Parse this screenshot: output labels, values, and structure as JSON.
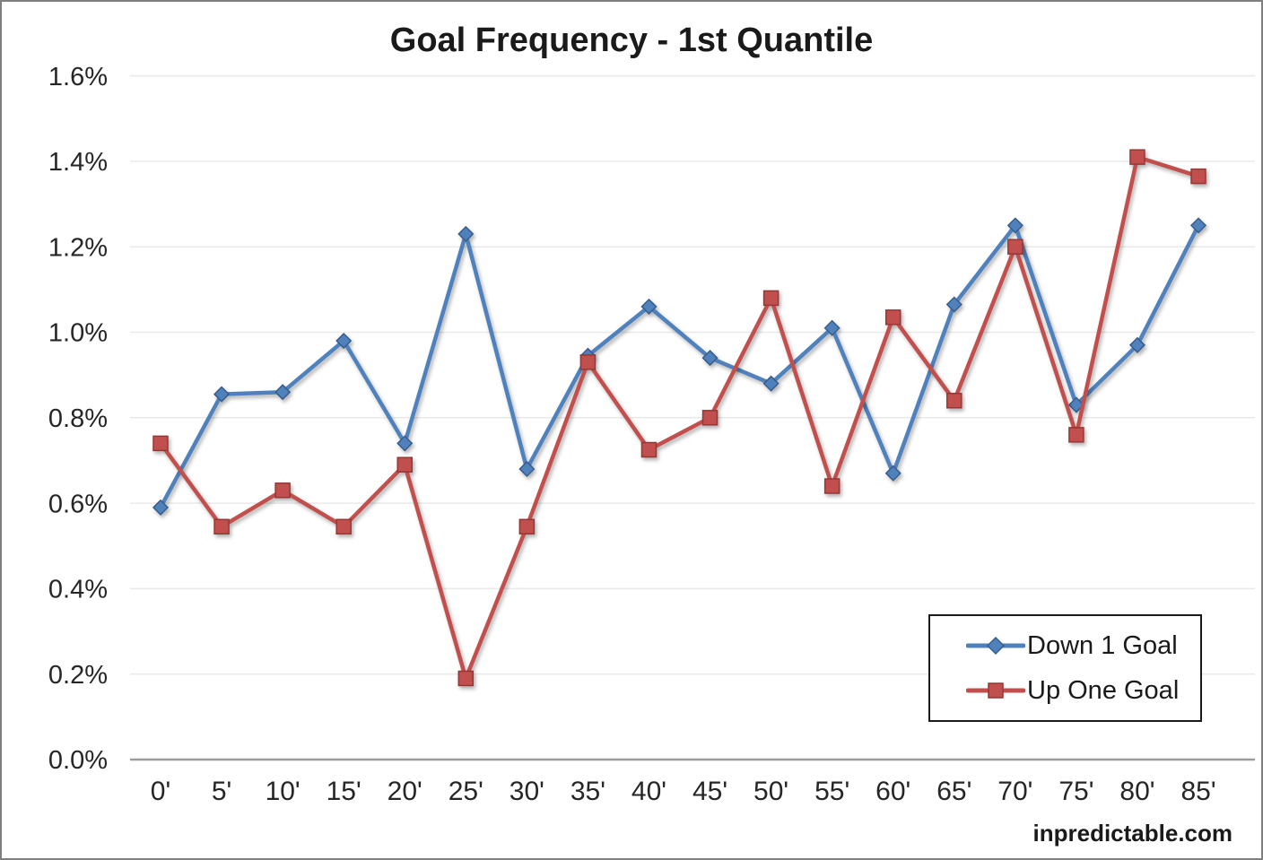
{
  "title": "Goal Frequency - 1st Quantile",
  "watermark": "inpredictable.com",
  "colors": {
    "text": "#262626",
    "gridline": "#e9e9e9",
    "axis_line": "#9c9c9c",
    "down_line": "#4F81BD",
    "down_marker_stroke": "#385D8A",
    "up_line": "#C0504D",
    "up_marker_stroke": "#953735",
    "legend_border": "#1a1a1a"
  },
  "chart_data": {
    "type": "line",
    "title": "Goal Frequency - 1st Quantile",
    "xlabel": "",
    "ylabel": "",
    "units": "percent",
    "categories": [
      "0'",
      "5'",
      "10'",
      "15'",
      "20'",
      "25'",
      "30'",
      "35'",
      "40'",
      "45'",
      "50'",
      "55'",
      "60'",
      "65'",
      "70'",
      "75'",
      "80'",
      "85'"
    ],
    "series": [
      {
        "name": "Down 1 Goal",
        "marker": "diamond",
        "color": "#4F81BD",
        "marker_stroke": "#385D8A",
        "values": [
          0.59,
          0.855,
          0.86,
          0.98,
          0.74,
          1.23,
          0.68,
          0.945,
          1.06,
          0.94,
          0.88,
          1.01,
          0.67,
          1.065,
          1.25,
          0.83,
          0.97,
          1.25
        ]
      },
      {
        "name": "Up One Goal",
        "marker": "square",
        "color": "#C0504D",
        "marker_stroke": "#953735",
        "values": [
          0.74,
          0.545,
          0.63,
          0.545,
          0.69,
          0.19,
          0.545,
          0.93,
          0.725,
          0.8,
          1.08,
          0.64,
          1.035,
          0.84,
          1.2,
          0.76,
          1.41,
          1.365
        ]
      }
    ],
    "ylim": [
      0.0,
      1.6
    ],
    "ytick_step": 0.2,
    "ytick_labels": [
      "0.0%",
      "0.2%",
      "0.4%",
      "0.6%",
      "0.8%",
      "1.0%",
      "1.2%",
      "1.4%",
      "1.6%"
    ],
    "grid": "horizontal",
    "legend_position": "inside-bottom-right"
  }
}
